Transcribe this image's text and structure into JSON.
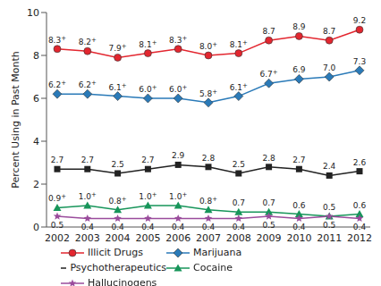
{
  "chart_data": {
    "type": "line",
    "y_label": "Percent Using in Past Month",
    "categories": [
      "2002",
      "2003",
      "2004",
      "2005",
      "2006",
      "2007",
      "2008",
      "2009",
      "2010",
      "2011",
      "2012"
    ],
    "ylim": [
      0,
      10
    ],
    "yticks": [
      0,
      2,
      4,
      6,
      8,
      10
    ],
    "grid": false,
    "legend": "bottom",
    "data_labels": true,
    "series": [
      {
        "name": "Illicit Drugs",
        "color": "#e3262f",
        "marker": "circle",
        "values": [
          8.3,
          8.2,
          7.9,
          8.1,
          8.3,
          8.0,
          8.1,
          8.7,
          8.9,
          8.7,
          9.2
        ],
        "value_labels": [
          "8.3+",
          "8.2+",
          "7.9+",
          "8.1+",
          "8.3+",
          "8.0+",
          "8.1+",
          "8.7",
          "8.9",
          "8.7",
          "9.2"
        ]
      },
      {
        "name": "Marijuana",
        "color": "#2a7ab8",
        "marker": "diamond",
        "values": [
          6.2,
          6.2,
          6.1,
          6.0,
          6.0,
          5.8,
          6.1,
          6.7,
          6.9,
          7.0,
          7.3
        ],
        "value_labels": [
          "6.2+",
          "6.2+",
          "6.1+",
          "6.0+",
          "6.0+",
          "5.8+",
          "6.1+",
          "6.7+",
          "6.9",
          "7.0",
          "7.3"
        ]
      },
      {
        "name": "Psychotherapeutics",
        "color": "#222222",
        "marker": "square",
        "values": [
          2.7,
          2.7,
          2.5,
          2.7,
          2.9,
          2.8,
          2.5,
          2.8,
          2.7,
          2.4,
          2.6
        ],
        "value_labels": [
          "2.7",
          "2.7",
          "2.5",
          "2.7",
          "2.9",
          "2.8",
          "2.5",
          "2.8",
          "2.7",
          "2.4",
          "2.6"
        ]
      },
      {
        "name": "Cocaine",
        "color": "#17955a",
        "marker": "triangle",
        "values": [
          0.9,
          1.0,
          0.8,
          1.0,
          1.0,
          0.8,
          0.7,
          0.7,
          0.6,
          0.5,
          0.6
        ],
        "value_labels": [
          "0.9+",
          "1.0+",
          "0.8+",
          "1.0+",
          "1.0+",
          "0.8+",
          "0.7",
          "0.7",
          "0.6",
          "0.5",
          "0.6"
        ]
      },
      {
        "name": "Hallucinogens",
        "color": "#9a4c9c",
        "marker": "star",
        "values": [
          0.5,
          0.4,
          0.4,
          0.4,
          0.4,
          0.4,
          0.4,
          0.5,
          0.4,
          0.5,
          0.4
        ],
        "value_labels": [
          "0.5",
          "0.4",
          "0.4",
          "0.4",
          "0.4",
          "0.4",
          "0.4",
          "0.5",
          "0.4",
          "0.5",
          "0.4"
        ]
      }
    ]
  }
}
